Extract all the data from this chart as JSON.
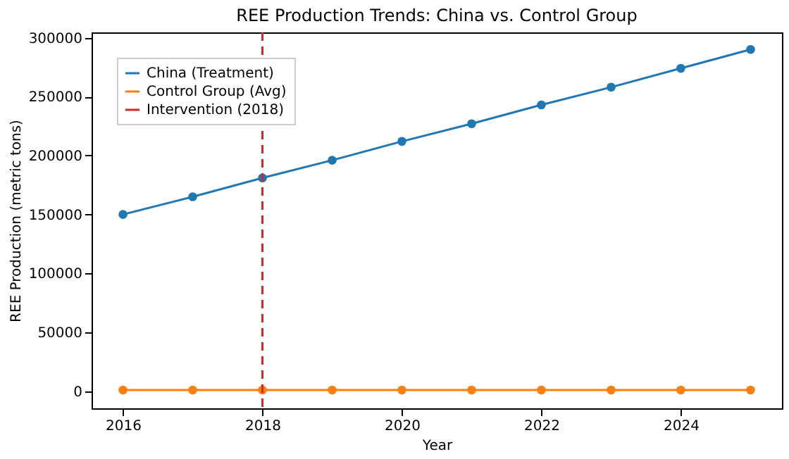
{
  "chart_data": {
    "type": "line",
    "title": "REE Production Trends: China vs. Control Group",
    "xlabel": "Year",
    "ylabel": "REE Production (metric tons)",
    "x": [
      2016,
      2017,
      2018,
      2019,
      2020,
      2021,
      2022,
      2023,
      2024,
      2025
    ],
    "series": [
      {
        "name": "China (Treatment)",
        "color": "#1f77b4",
        "values": [
          150000,
          165000,
          181000,
          196000,
          212000,
          227000,
          243000,
          258000,
          274000,
          290000
        ]
      },
      {
        "name": "Control Group (Avg)",
        "color": "#ff7f0e",
        "values": [
          1000,
          1000,
          1000,
          1000,
          1000,
          1000,
          1000,
          1000,
          1000,
          1000
        ]
      }
    ],
    "xlim": [
      2015.55,
      2025.45
    ],
    "xticks": [
      2016,
      2018,
      2020,
      2022,
      2024
    ],
    "ylim": [
      -14500,
      304500
    ],
    "yticks": [
      0,
      50000,
      100000,
      150000,
      200000,
      250000,
      300000
    ],
    "ref_lines": [
      {
        "axis": "x",
        "value": 2018,
        "label": "Intervention (2018)",
        "color": "#d62728",
        "line_style": "dashed"
      }
    ],
    "marker": "circle",
    "line_style": "solid",
    "grid": false,
    "legend": "top left"
  }
}
